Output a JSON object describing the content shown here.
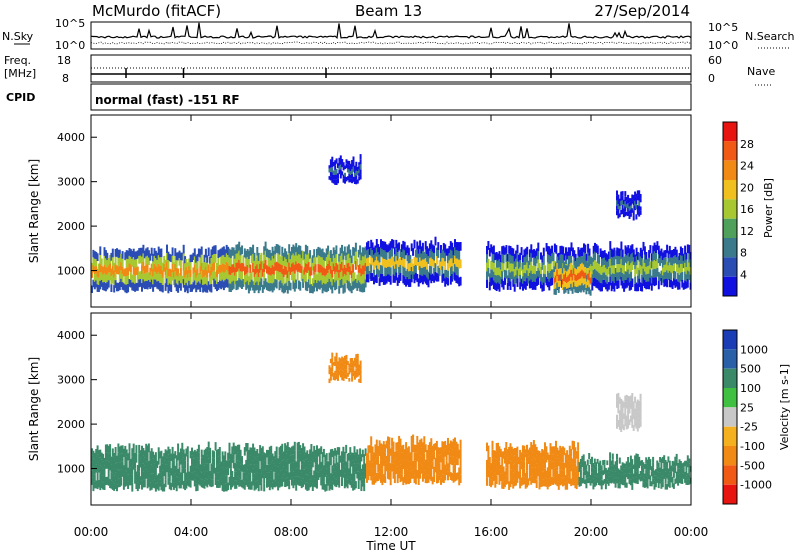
{
  "header": {
    "station": "McMurdo (fitACF)",
    "beam": "Beam 13",
    "date": "27/Sep/2014"
  },
  "noise_panel": {
    "left_label": "N.Sky",
    "right_label": "N.Search",
    "tick_high_left": "10^5",
    "tick_low_left": "10^0",
    "tick_high_right": "10^5",
    "tick_low_right": "10^0"
  },
  "freq_panel": {
    "left_label_1": "Freq.",
    "left_label_2": "[MHz]",
    "right_label": "Nave",
    "left_tick_top": "18",
    "left_tick_bottom": "8",
    "right_tick_top": "60",
    "right_tick_bottom": "0",
    "cpid_label": "CPID"
  },
  "mode_text": "normal (fast) -151 RF",
  "x_axis": {
    "label": "Time UT",
    "ticks": [
      "00:00",
      "04:00",
      "08:00",
      "12:00",
      "16:00",
      "20:00",
      "00:00"
    ]
  },
  "colors": {
    "power": [
      "#1010e0",
      "#2a4db4",
      "#3a7a8a",
      "#4ea05a",
      "#a8c832",
      "#f0c01e",
      "#f08a14",
      "#f05a14",
      "#e81410"
    ],
    "velocity": [
      "#e81410",
      "#f05a14",
      "#f08a14",
      "#f5b020",
      "#c8c8c8",
      "#40c040",
      "#3a8a6a",
      "#2a60a8",
      "#1a3cb4"
    ]
  },
  "chart_data": [
    {
      "type": "heatmap",
      "title": "Power",
      "ylabel": "Slant Range [km]",
      "xlabel": "",
      "x_range_hours": [
        0,
        24
      ],
      "ylim": [
        180,
        4500
      ],
      "y_ticks": [
        1000,
        2000,
        3000,
        4000
      ],
      "colorbar": {
        "label": "Power [dB]",
        "ticks": [
          4,
          8,
          12,
          16,
          20,
          24,
          28
        ],
        "range": [
          0,
          31
        ]
      },
      "blobs": [
        {
          "t": [
            0.0,
            5.5
          ],
          "r": [
            560,
            1450
          ],
          "v": 24
        },
        {
          "t": [
            5.5,
            11.0
          ],
          "r": [
            560,
            1500
          ],
          "v": 26
        },
        {
          "t": [
            11.0,
            14.8
          ],
          "r": [
            700,
            1600
          ],
          "v": 18
        },
        {
          "t": [
            15.8,
            24.0
          ],
          "r": [
            600,
            1500
          ],
          "v": 16
        },
        {
          "t": [
            18.5,
            20.0
          ],
          "r": [
            500,
            1200
          ],
          "v": 28
        },
        {
          "t": [
            9.5,
            10.8
          ],
          "r": [
            3000,
            3500
          ],
          "v": 8
        },
        {
          "t": [
            21.0,
            22.0
          ],
          "r": [
            2200,
            2700
          ],
          "v": 8
        }
      ]
    },
    {
      "type": "heatmap",
      "title": "Velocity",
      "ylabel": "Slant Range [km]",
      "xlabel": "Time UT",
      "x_range_hours": [
        0,
        24
      ],
      "ylim": [
        180,
        4500
      ],
      "y_ticks": [
        1000,
        2000,
        3000,
        4000
      ],
      "colorbar": {
        "label": "Velocity [m s-1]",
        "ticks": [
          1000,
          500,
          100,
          25,
          -25,
          -100,
          -500,
          -1000
        ]
      },
      "blobs": [
        {
          "t": [
            0.0,
            11.0
          ],
          "r": [
            560,
            1450
          ],
          "v": 100
        },
        {
          "t": [
            11.0,
            14.8
          ],
          "r": [
            700,
            1600
          ],
          "v": -100
        },
        {
          "t": [
            15.8,
            19.5
          ],
          "r": [
            600,
            1500
          ],
          "v": -100
        },
        {
          "t": [
            19.5,
            24.0
          ],
          "r": [
            600,
            1200
          ],
          "v": 100
        },
        {
          "t": [
            9.5,
            10.8
          ],
          "r": [
            3000,
            3500
          ],
          "v": -100
        },
        {
          "t": [
            21.0,
            22.0
          ],
          "r": [
            1900,
            2600
          ],
          "v": 0
        }
      ]
    }
  ]
}
